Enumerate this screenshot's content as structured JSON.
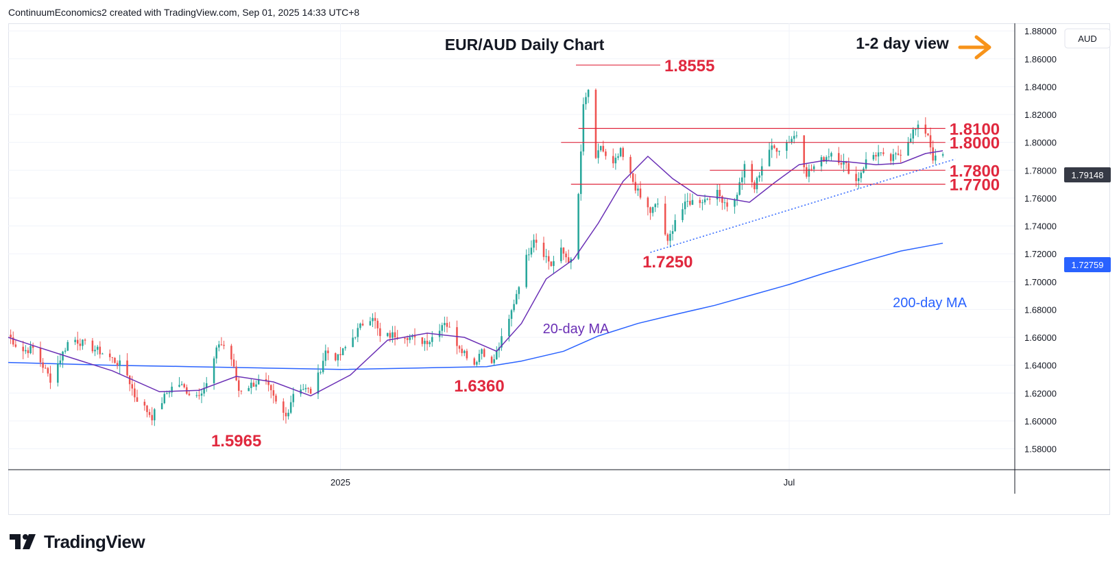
{
  "header": {
    "credit": "ContinuumEconomics2 created with TradingView.com, Sep 01, 2025 14:33 UTC+8"
  },
  "footer": {
    "brand": "TradingView"
  },
  "colors": {
    "up": "#26a69a",
    "down": "#ef5350",
    "ma20": "#6a2fb5",
    "ma200": "#2962ff",
    "level_line": "#e0283e",
    "accent_arrow": "#f7931a",
    "price_badge": "#363a45",
    "ma200_badge": "#2962ff"
  },
  "chart_data": {
    "type": "candlestick",
    "title": "EUR/AUD Daily Chart",
    "subtitle": "1-2 day view",
    "view_arrow": "right-arrow",
    "currency_label": "AUD",
    "y_axis": {
      "ylim": [
        1.565,
        1.8855
      ],
      "ticks": [
        "1.58000",
        "1.60000",
        "1.62000",
        "1.64000",
        "1.66000",
        "1.68000",
        "1.70000",
        "1.72000",
        "1.74000",
        "1.76000",
        "1.78000",
        "1.80000",
        "1.82000",
        "1.84000",
        "1.86000",
        "1.88000"
      ],
      "last_price": "1.79148",
      "ma200_price": "1.72759"
    },
    "x_axis": {
      "range": [
        "2024-08-20",
        "2025-09-30"
      ],
      "labels": [
        {
          "date": "2025-01-01",
          "text": "2025"
        },
        {
          "date": "2025-07-01",
          "text": "Jul"
        }
      ]
    },
    "levels": [
      {
        "label": "1.8555",
        "value": 1.8555,
        "from": "2025-04-06",
        "to": "2025-05-10"
      },
      {
        "label": "1.8100",
        "value": 1.81,
        "from": "2025-04-07",
        "to": "2025-09-02"
      },
      {
        "label": "1.8000",
        "value": 1.8,
        "from": "2025-03-31",
        "to": "2025-09-02"
      },
      {
        "label": "1.7800",
        "value": 1.78,
        "from": "2025-05-30",
        "to": "2025-09-02"
      },
      {
        "label": "1.7700",
        "value": 1.77,
        "from": "2025-04-04",
        "to": "2025-09-02"
      }
    ],
    "trendline": {
      "from": {
        "date": "2025-05-06",
        "value": 1.721
      },
      "to": {
        "date": "2025-09-06",
        "value": 1.788
      }
    },
    "swing_labels": [
      {
        "text": "1.5965",
        "date": "2024-11-20",
        "value": 1.5965
      },
      {
        "text": "1.6360",
        "date": "2025-02-26",
        "value": 1.636
      },
      {
        "text": "1.7250",
        "date": "2025-05-13",
        "value": 1.725
      }
    ],
    "ma_labels": {
      "ma20": "20-day MA",
      "ma200": "200-day MA"
    },
    "anchors": [
      {
        "date": "2024-08-20",
        "value": 1.662
      },
      {
        "date": "2024-08-25",
        "value": 1.65
      },
      {
        "date": "2024-08-30",
        "value": 1.652
      },
      {
        "date": "2024-09-06",
        "value": 1.63
      },
      {
        "date": "2024-09-14",
        "value": 1.66
      },
      {
        "date": "2024-09-28",
        "value": 1.648
      },
      {
        "date": "2024-10-06",
        "value": 1.638
      },
      {
        "date": "2024-10-10",
        "value": 1.618
      },
      {
        "date": "2024-10-17",
        "value": 1.603
      },
      {
        "date": "2024-10-23",
        "value": 1.62
      },
      {
        "date": "2024-10-27",
        "value": 1.628
      },
      {
        "date": "2024-11-03",
        "value": 1.617
      },
      {
        "date": "2024-11-08",
        "value": 1.626
      },
      {
        "date": "2024-11-13",
        "value": 1.656
      },
      {
        "date": "2024-11-17",
        "value": 1.652
      },
      {
        "date": "2024-11-21",
        "value": 1.622
      },
      {
        "date": "2024-12-01",
        "value": 1.63
      },
      {
        "date": "2024-12-07",
        "value": 1.609
      },
      {
        "date": "2024-12-10",
        "value": 1.603
      },
      {
        "date": "2024-12-14",
        "value": 1.626
      },
      {
        "date": "2024-12-21",
        "value": 1.62
      },
      {
        "date": "2024-12-26",
        "value": 1.65
      },
      {
        "date": "2024-12-31",
        "value": 1.645
      },
      {
        "date": "2025-01-10",
        "value": 1.67
      },
      {
        "date": "2025-01-14",
        "value": 1.676
      },
      {
        "date": "2025-01-17",
        "value": 1.66
      },
      {
        "date": "2025-01-26",
        "value": 1.663
      },
      {
        "date": "2025-02-01",
        "value": 1.657
      },
      {
        "date": "2025-02-06",
        "value": 1.658
      },
      {
        "date": "2025-02-12",
        "value": 1.672
      },
      {
        "date": "2025-02-17",
        "value": 1.656
      },
      {
        "date": "2025-02-24",
        "value": 1.641
      },
      {
        "date": "2025-02-27",
        "value": 1.652
      },
      {
        "date": "2025-03-03",
        "value": 1.64
      },
      {
        "date": "2025-03-10",
        "value": 1.672
      },
      {
        "date": "2025-03-16",
        "value": 1.712
      },
      {
        "date": "2025-03-20",
        "value": 1.732
      },
      {
        "date": "2025-03-27",
        "value": 1.712
      },
      {
        "date": "2025-03-31",
        "value": 1.722
      },
      {
        "date": "2025-04-05",
        "value": 1.712
      },
      {
        "date": "2025-04-07",
        "value": 1.762
      },
      {
        "date": "2025-04-09",
        "value": 1.825
      },
      {
        "date": "2025-04-11",
        "value": 1.838
      },
      {
        "date": "2025-04-13",
        "value": 1.78
      },
      {
        "date": "2025-04-16",
        "value": 1.798
      },
      {
        "date": "2025-04-20",
        "value": 1.78
      },
      {
        "date": "2025-04-24",
        "value": 1.793
      },
      {
        "date": "2025-04-28",
        "value": 1.776
      },
      {
        "date": "2025-05-02",
        "value": 1.76
      },
      {
        "date": "2025-05-06",
        "value": 1.75
      },
      {
        "date": "2025-05-09",
        "value": 1.756
      },
      {
        "date": "2025-05-13",
        "value": 1.727
      },
      {
        "date": "2025-05-16",
        "value": 1.745
      },
      {
        "date": "2025-05-21",
        "value": 1.757
      },
      {
        "date": "2025-05-28",
        "value": 1.759
      },
      {
        "date": "2025-06-01",
        "value": 1.765
      },
      {
        "date": "2025-06-08",
        "value": 1.752
      },
      {
        "date": "2025-06-13",
        "value": 1.782
      },
      {
        "date": "2025-06-17",
        "value": 1.767
      },
      {
        "date": "2025-06-22",
        "value": 1.795
      },
      {
        "date": "2025-06-27",
        "value": 1.796
      },
      {
        "date": "2025-07-04",
        "value": 1.806
      },
      {
        "date": "2025-07-08",
        "value": 1.778
      },
      {
        "date": "2025-07-14",
        "value": 1.787
      },
      {
        "date": "2025-07-18",
        "value": 1.793
      },
      {
        "date": "2025-07-24",
        "value": 1.783
      },
      {
        "date": "2025-07-28",
        "value": 1.772
      },
      {
        "date": "2025-08-02",
        "value": 1.79
      },
      {
        "date": "2025-08-06",
        "value": 1.792
      },
      {
        "date": "2025-08-10",
        "value": 1.786
      },
      {
        "date": "2025-08-15",
        "value": 1.793
      },
      {
        "date": "2025-08-20",
        "value": 1.808
      },
      {
        "date": "2025-08-23",
        "value": 1.811
      },
      {
        "date": "2025-08-26",
        "value": 1.806
      },
      {
        "date": "2025-08-28",
        "value": 1.789
      },
      {
        "date": "2025-08-31",
        "value": 1.786
      },
      {
        "date": "2025-09-01",
        "value": 1.7915
      }
    ],
    "ma20": [
      {
        "date": "2024-08-20",
        "value": 1.66
      },
      {
        "date": "2024-09-01",
        "value": 1.653
      },
      {
        "date": "2024-09-15",
        "value": 1.645
      },
      {
        "date": "2024-10-01",
        "value": 1.636
      },
      {
        "date": "2024-10-20",
        "value": 1.621
      },
      {
        "date": "2024-11-05",
        "value": 1.622
      },
      {
        "date": "2024-11-20",
        "value": 1.632
      },
      {
        "date": "2024-12-05",
        "value": 1.628
      },
      {
        "date": "2024-12-20",
        "value": 1.618
      },
      {
        "date": "2025-01-05",
        "value": 1.633
      },
      {
        "date": "2025-01-20",
        "value": 1.658
      },
      {
        "date": "2025-02-05",
        "value": 1.663
      },
      {
        "date": "2025-02-20",
        "value": 1.66
      },
      {
        "date": "2025-03-05",
        "value": 1.65
      },
      {
        "date": "2025-03-15",
        "value": 1.67
      },
      {
        "date": "2025-03-25",
        "value": 1.702
      },
      {
        "date": "2025-04-05",
        "value": 1.716
      },
      {
        "date": "2025-04-15",
        "value": 1.742
      },
      {
        "date": "2025-04-25",
        "value": 1.772
      },
      {
        "date": "2025-05-05",
        "value": 1.79
      },
      {
        "date": "2025-05-15",
        "value": 1.774
      },
      {
        "date": "2025-05-25",
        "value": 1.762
      },
      {
        "date": "2025-06-05",
        "value": 1.76
      },
      {
        "date": "2025-06-15",
        "value": 1.757
      },
      {
        "date": "2025-06-25",
        "value": 1.771
      },
      {
        "date": "2025-07-05",
        "value": 1.784
      },
      {
        "date": "2025-07-15",
        "value": 1.787
      },
      {
        "date": "2025-07-25",
        "value": 1.786
      },
      {
        "date": "2025-08-05",
        "value": 1.784
      },
      {
        "date": "2025-08-15",
        "value": 1.785
      },
      {
        "date": "2025-08-25",
        "value": 1.792
      },
      {
        "date": "2025-09-01",
        "value": 1.794
      }
    ],
    "ma200": [
      {
        "date": "2024-08-20",
        "value": 1.642
      },
      {
        "date": "2024-10-01",
        "value": 1.64
      },
      {
        "date": "2024-11-01",
        "value": 1.639
      },
      {
        "date": "2024-12-01",
        "value": 1.638
      },
      {
        "date": "2025-01-01",
        "value": 1.637
      },
      {
        "date": "2025-02-01",
        "value": 1.638
      },
      {
        "date": "2025-03-01",
        "value": 1.639
      },
      {
        "date": "2025-03-15",
        "value": 1.643
      },
      {
        "date": "2025-04-01",
        "value": 1.65
      },
      {
        "date": "2025-04-15",
        "value": 1.661
      },
      {
        "date": "2025-05-01",
        "value": 1.67
      },
      {
        "date": "2025-05-15",
        "value": 1.676
      },
      {
        "date": "2025-06-01",
        "value": 1.683
      },
      {
        "date": "2025-06-15",
        "value": 1.69
      },
      {
        "date": "2025-07-01",
        "value": 1.698
      },
      {
        "date": "2025-07-15",
        "value": 1.706
      },
      {
        "date": "2025-08-01",
        "value": 1.715
      },
      {
        "date": "2025-08-15",
        "value": 1.722
      },
      {
        "date": "2025-09-01",
        "value": 1.7276
      }
    ]
  }
}
